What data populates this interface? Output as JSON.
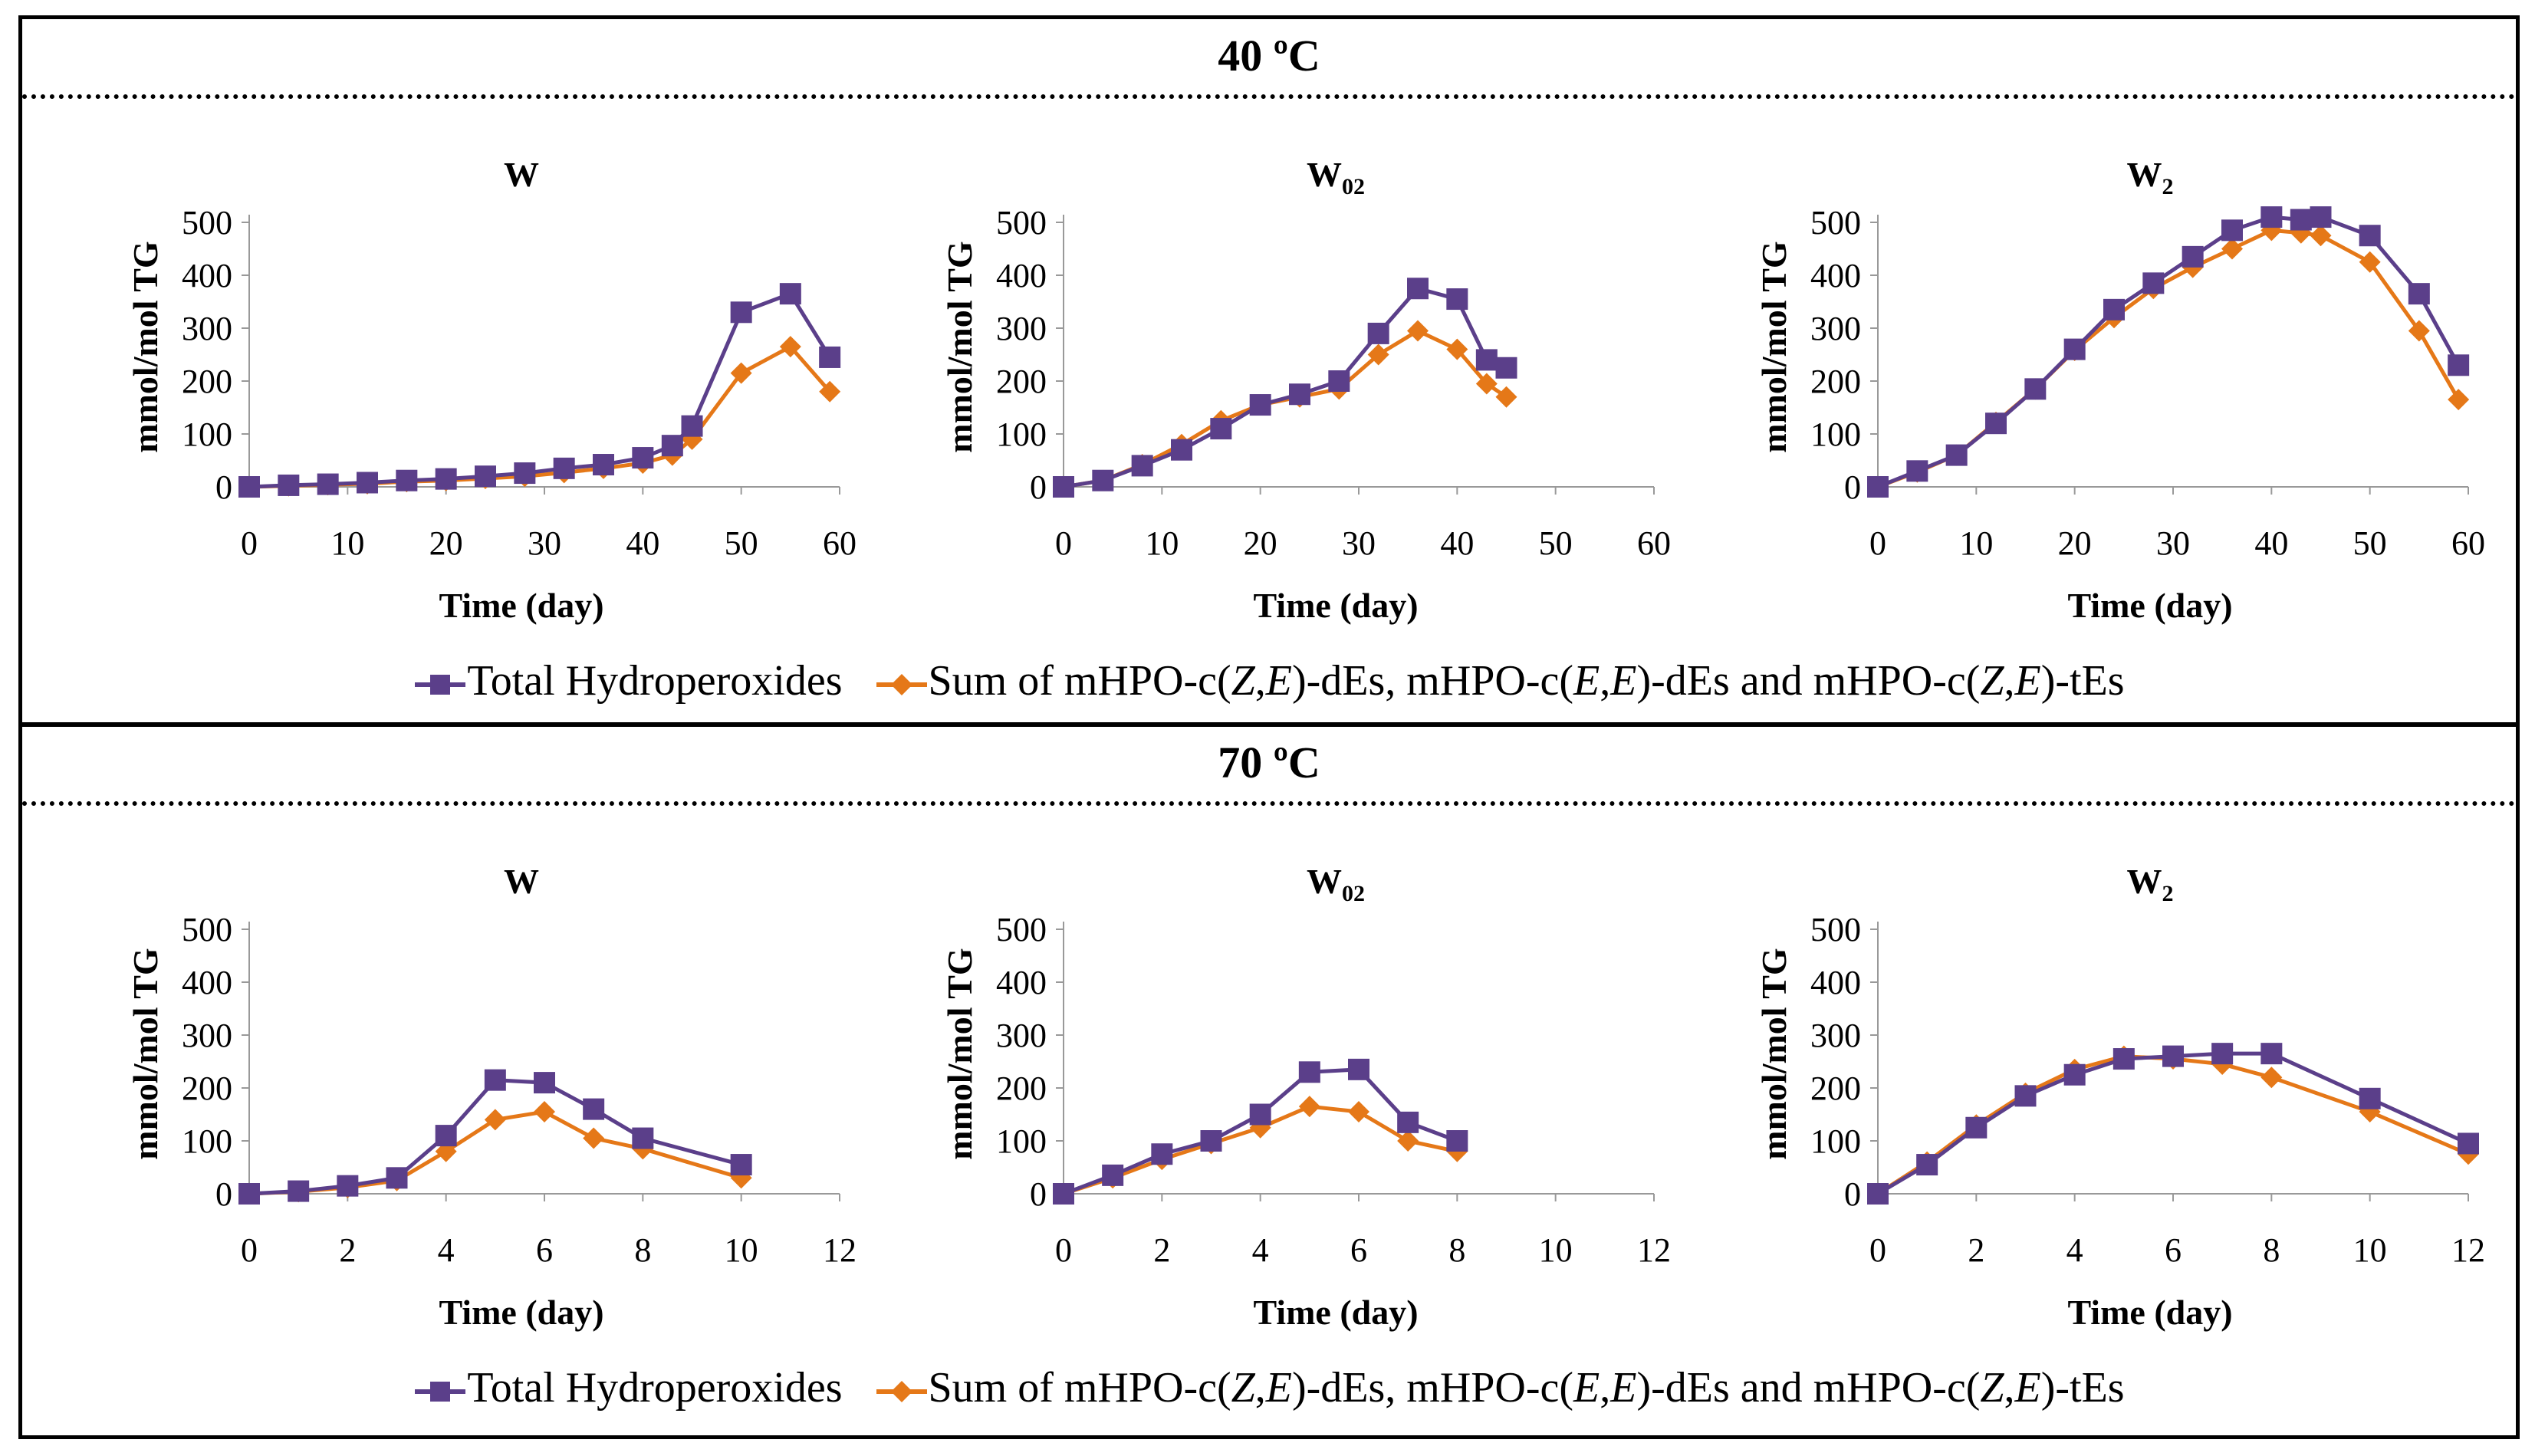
{
  "legend": {
    "total_label": "Total Hydroperoxides",
    "sum_prefix": "Sum of mHPO-c(",
    "sum_z1": "Z",
    "sum_comma1": ",",
    "sum_e1": "E",
    "sum_mid1": ")-dEs, mHPO-c(",
    "sum_e2": "E",
    "sum_comma2": ",",
    "sum_e3": "E",
    "sum_mid2": ")-dEs and mHPO-c(",
    "sum_z2": "Z",
    "sum_comma3": ",",
    "sum_e4": "E",
    "sum_suffix": ")-tEs"
  },
  "colors": {
    "total": "#5b3f8a",
    "sum": "#e57818"
  },
  "chart_data": [
    {
      "panel": "40 ºC",
      "charts": [
        {
          "type": "line",
          "title_main": "W",
          "title_sub": "",
          "xlabel": "Time (day)",
          "ylabel": "mmol/mol TG",
          "xlim": [
            0,
            60
          ],
          "ylim": [
            0,
            500
          ],
          "xticks": [
            0,
            10,
            20,
            30,
            40,
            50,
            60
          ],
          "yticks": [
            0,
            100,
            200,
            300,
            400,
            500
          ],
          "series": [
            {
              "name": "Total Hydroperoxides",
              "x": [
                0,
                4,
                8,
                12,
                16,
                20,
                24,
                28,
                32,
                36,
                40,
                43,
                45,
                50,
                55,
                59
              ],
              "values": [
                0,
                3,
                5,
                8,
                12,
                15,
                20,
                26,
                35,
                42,
                55,
                78,
                115,
                330,
                365,
                245
              ]
            },
            {
              "name": "Sum of mHPO-c(Z,E)-dEs, mHPO-c(E,E)-dEs and mHPO-c(Z,E)-tEs",
              "x": [
                0,
                4,
                8,
                12,
                16,
                20,
                24,
                28,
                32,
                36,
                40,
                43,
                45,
                50,
                55,
                59
              ],
              "values": [
                0,
                2,
                4,
                6,
                10,
                12,
                16,
                20,
                27,
                35,
                45,
                60,
                90,
                215,
                265,
                180
              ]
            }
          ]
        },
        {
          "type": "line",
          "title_main": "W",
          "title_sub": "02",
          "xlabel": "Time (day)",
          "ylabel": "mmol/mol TG",
          "xlim": [
            0,
            60
          ],
          "ylim": [
            0,
            500
          ],
          "xticks": [
            0,
            10,
            20,
            30,
            40,
            50,
            60
          ],
          "yticks": [
            0,
            100,
            200,
            300,
            400,
            500
          ],
          "series": [
            {
              "name": "Total Hydroperoxides",
              "x": [
                0,
                4,
                8,
                12,
                16,
                20,
                24,
                28,
                32,
                36,
                40,
                43,
                45
              ],
              "values": [
                0,
                12,
                40,
                70,
                110,
                155,
                175,
                200,
                290,
                375,
                355,
                240,
                225
              ]
            },
            {
              "name": "Sum of mHPO-c(Z,E)-dEs, mHPO-c(E,E)-dEs and mHPO-c(Z,E)-tEs",
              "x": [
                0,
                4,
                8,
                12,
                16,
                20,
                24,
                28,
                32,
                36,
                40,
                43,
                45
              ],
              "values": [
                0,
                12,
                42,
                80,
                125,
                155,
                170,
                185,
                250,
                295,
                260,
                195,
                170
              ]
            }
          ]
        },
        {
          "type": "line",
          "title_main": "W",
          "title_sub": "2",
          "xlabel": "Time (day)",
          "ylabel": "mmol/mol TG",
          "xlim": [
            0,
            60
          ],
          "ylim": [
            0,
            500
          ],
          "xticks": [
            0,
            10,
            20,
            30,
            40,
            50,
            60
          ],
          "yticks": [
            0,
            100,
            200,
            300,
            400,
            500
          ],
          "series": [
            {
              "name": "Total Hydroperoxides",
              "x": [
                0,
                4,
                8,
                12,
                16,
                20,
                24,
                28,
                32,
                36,
                40,
                43,
                45,
                50,
                55,
                59
              ],
              "values": [
                0,
                30,
                60,
                120,
                185,
                260,
                335,
                385,
                435,
                485,
                510,
                505,
                510,
                475,
                365,
                230
              ]
            },
            {
              "name": "Sum of mHPO-c(Z,E)-dEs, mHPO-c(E,E)-dEs and mHPO-c(Z,E)-tEs",
              "x": [
                0,
                4,
                8,
                12,
                16,
                20,
                24,
                28,
                32,
                36,
                40,
                43,
                45,
                50,
                55,
                59
              ],
              "values": [
                0,
                28,
                60,
                122,
                185,
                258,
                320,
                375,
                415,
                450,
                485,
                480,
                475,
                425,
                295,
                165
              ]
            }
          ]
        }
      ]
    },
    {
      "panel": "70 ºC",
      "charts": [
        {
          "type": "line",
          "title_main": "W",
          "title_sub": "",
          "xlabel": "Time (day)",
          "ylabel": "mmol/mol TG",
          "xlim": [
            0,
            12
          ],
          "ylim": [
            0,
            500
          ],
          "xticks": [
            0,
            2,
            4,
            6,
            8,
            10,
            12
          ],
          "yticks": [
            0,
            100,
            200,
            300,
            400,
            500
          ],
          "series": [
            {
              "name": "Total Hydroperoxides",
              "x": [
                0,
                1,
                2,
                3,
                4,
                5,
                6,
                7,
                8,
                10
              ],
              "values": [
                0,
                5,
                15,
                30,
                110,
                215,
                210,
                160,
                105,
                55
              ]
            },
            {
              "name": "Sum of mHPO-c(Z,E)-dEs, mHPO-c(E,E)-dEs and mHPO-c(Z,E)-tEs",
              "x": [
                0,
                1,
                2,
                3,
                4,
                5,
                6,
                7,
                8,
                10
              ],
              "values": [
                0,
                4,
                12,
                25,
                80,
                140,
                155,
                105,
                85,
                30
              ]
            }
          ]
        },
        {
          "type": "line",
          "title_main": "W",
          "title_sub": "02",
          "xlabel": "Time (day)",
          "ylabel": "mmol/mol TG",
          "xlim": [
            0,
            12
          ],
          "ylim": [
            0,
            500
          ],
          "xticks": [
            0,
            2,
            4,
            6,
            8,
            10,
            12
          ],
          "yticks": [
            0,
            100,
            200,
            300,
            400,
            500
          ],
          "series": [
            {
              "name": "Total Hydroperoxides",
              "x": [
                0,
                1,
                2,
                3,
                4,
                5,
                6,
                7,
                8
              ],
              "values": [
                0,
                35,
                75,
                100,
                150,
                230,
                235,
                135,
                100
              ]
            },
            {
              "name": "Sum of mHPO-c(Z,E)-dEs, mHPO-c(E,E)-dEs and mHPO-c(Z,E)-tEs",
              "x": [
                0,
                1,
                2,
                3,
                4,
                5,
                6,
                7,
                8
              ],
              "values": [
                0,
                30,
                65,
                95,
                125,
                165,
                155,
                100,
                80
              ]
            }
          ]
        },
        {
          "type": "line",
          "title_main": "W",
          "title_sub": "2",
          "xlabel": "Time (day)",
          "ylabel": "mmol/mol TG",
          "xlim": [
            0,
            12
          ],
          "ylim": [
            0,
            500
          ],
          "xticks": [
            0,
            2,
            4,
            6,
            8,
            10,
            12
          ],
          "yticks": [
            0,
            100,
            200,
            300,
            400,
            500
          ],
          "series": [
            {
              "name": "Total Hydroperoxides",
              "x": [
                0,
                1,
                2,
                3,
                4,
                5,
                6,
                7,
                8,
                10,
                12
              ],
              "values": [
                0,
                55,
                125,
                185,
                225,
                255,
                260,
                265,
                265,
                180,
                95
              ]
            },
            {
              "name": "Sum of mHPO-c(Z,E)-dEs, mHPO-c(E,E)-dEs and mHPO-c(Z,E)-tEs",
              "x": [
                0,
                1,
                2,
                3,
                4,
                5,
                6,
                7,
                8,
                10,
                12
              ],
              "values": [
                0,
                60,
                130,
                190,
                235,
                260,
                255,
                245,
                220,
                155,
                75
              ]
            }
          ]
        }
      ]
    }
  ]
}
